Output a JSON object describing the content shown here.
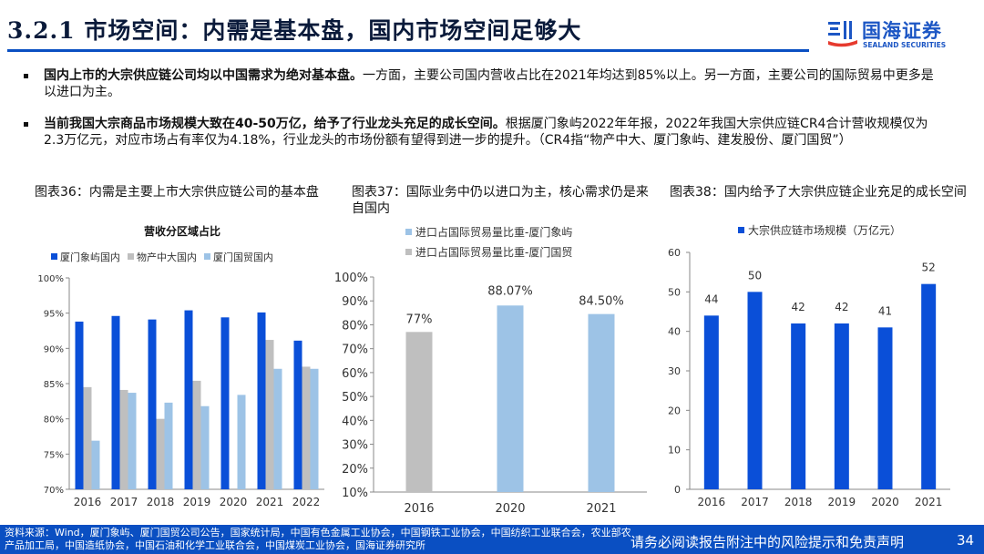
{
  "header": {
    "title_num": "3.2.1",
    "title_text": "市场空间：内需是基本盘，国内市场空间足够大"
  },
  "logo": {
    "name": "国海证券",
    "sub": "SEALAND SECURITIES",
    "color": "#1c56c4"
  },
  "bullets": [
    {
      "bold": "国内上市的大宗供应链公司均以中国需求为绝对基本盘。",
      "rest": "一方面，主要公司国内营收占比在2021年均达到85%以上。另一方面，主要公司的国际贸易中更多是以进口为主。"
    },
    {
      "bold": "当前我国大宗商品市场规模大致在40-50万亿，给予了行业龙头充足的成长空间。",
      "rest": "根据厦门象屿2022年年报，2022年我国大宗供应链CR4合计营收规模仅为2.3万亿元，对应市场占有率仅为4.18%，行业龙头的市场份额有望得到进一步的提升。（CR4指“物产中大、厦门象屿、建发股份、厦门国贸”）"
    }
  ],
  "captions": {
    "c36": "图表36：内需是主要上市大宗供应链公司的基本盘",
    "c37": "图表37：国际业务中仍以进口为主，核心需求仍是来自国内",
    "c38": "图表38：国内给予了大宗供应链企业充足的成长空间"
  },
  "chart_data": [
    {
      "type": "bar",
      "title": "营收分区域占比",
      "categories": [
        "2016",
        "2017",
        "2018",
        "2019",
        "2020",
        "2021",
        "2022"
      ],
      "series": [
        {
          "name": "厦门象屿国内",
          "color": "#0a4fd8",
          "values": [
            93.8,
            94.6,
            94.1,
            95.4,
            94.4,
            95.1,
            91.1
          ]
        },
        {
          "name": "物产中大国内",
          "color": "#bfbfbf",
          "values": [
            84.5,
            84.1,
            80.0,
            85.4,
            null,
            91.2,
            87.4
          ]
        },
        {
          "name": "厦门国贸国内",
          "color": "#9dc3e6",
          "values": [
            76.9,
            83.7,
            82.3,
            81.8,
            83.4,
            87.1,
            87.1
          ]
        }
      ],
      "ylim": [
        70,
        100
      ],
      "yticks": [
        "70%",
        "75%",
        "80%",
        "85%",
        "90%",
        "95%",
        "100%"
      ],
      "ytick_values": [
        70,
        75,
        80,
        85,
        90,
        95,
        100
      ],
      "legend": "top",
      "grid": false
    },
    {
      "type": "bar",
      "categories": [
        "2016",
        "2020",
        "2021"
      ],
      "series": [
        {
          "name": "进口占国际贸易量比重-厦门象屿",
          "color": "#9dc3e6"
        },
        {
          "name": "进口占国际贸易量比重-厦门国贸",
          "color": "#bfbfbf"
        }
      ],
      "bars": [
        {
          "category": "2016",
          "value": 77,
          "label": "77%",
          "color": "#bfbfbf"
        },
        {
          "category": "2020",
          "value": 88.07,
          "label": "88.07%",
          "color": "#9dc3e6"
        },
        {
          "category": "2021",
          "value": 84.5,
          "label": "84.50%",
          "color": "#9dc3e6"
        }
      ],
      "ylim": [
        10,
        100
      ],
      "yticks": [
        "10%",
        "20%",
        "30%",
        "40%",
        "50%",
        "60%",
        "70%",
        "80%",
        "90%",
        "100%"
      ],
      "ytick_values": [
        10,
        20,
        30,
        40,
        50,
        60,
        70,
        80,
        90,
        100
      ],
      "legend": "top",
      "grid": false
    },
    {
      "type": "bar",
      "categories": [
        "2016",
        "2017",
        "2018",
        "2019",
        "2020",
        "2021"
      ],
      "series": [
        {
          "name": "大宗供应链市场规模（万亿元）",
          "color": "#0a4fd8",
          "values": [
            44,
            50,
            42,
            42,
            41,
            52
          ]
        }
      ],
      "ylim": [
        0,
        60
      ],
      "yticks": [
        "0",
        "10",
        "20",
        "30",
        "40",
        "50",
        "60"
      ],
      "ytick_values": [
        0,
        10,
        20,
        30,
        40,
        50,
        60
      ],
      "legend": "top",
      "grid": false
    }
  ],
  "footer": {
    "source": "资料来源：Wind，厦门象屿、厦门国贸公司公告，国家统计局，中国有色金属工业协会，中国钢铁工业协会，中国纺织工业联合会，农业部农产品加工局，中国造纸协会，中国石油和化学工业联合会，中国煤炭工业协会，国海证券研究所",
    "notice": "请务必阅读报告附注中的风险提示和免责声明",
    "page": "34"
  }
}
